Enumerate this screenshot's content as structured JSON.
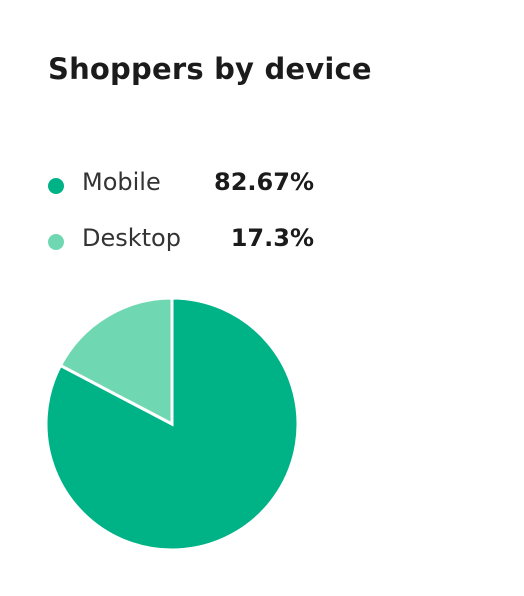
{
  "title": "Shoppers by device",
  "colors": {
    "mobile": "#00b386",
    "desktop": "#6fd8b2"
  },
  "chart_data": {
    "type": "pie",
    "title": "Shoppers by device",
    "slices": [
      {
        "label": "Mobile",
        "value": 82.67,
        "display": "82.67%",
        "color": "#00b386"
      },
      {
        "label": "Desktop",
        "value": 17.3,
        "display": "17.3%",
        "color": "#6fd8b2"
      }
    ],
    "legend": "top-left"
  }
}
